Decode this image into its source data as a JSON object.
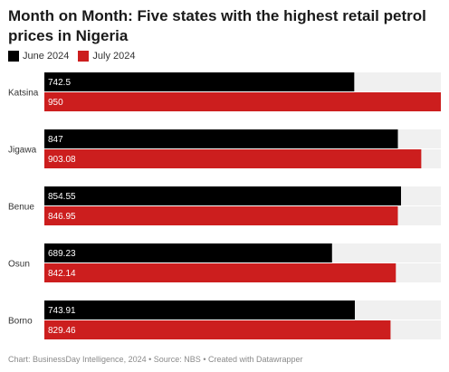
{
  "title": "Month on Month: Five states with the highest retail petrol prices in Nigeria",
  "legend": [
    {
      "name": "June 2024",
      "color": "#000000"
    },
    {
      "name": "July 2024",
      "color": "#cc1e1e"
    }
  ],
  "footer": {
    "chart_source": "Chart: BusinessDay Intelligence, 2024",
    "separator1": "•",
    "source": "Source: NBS",
    "separator2": "•",
    "created": "Created with Datawrapper"
  },
  "chart_data": {
    "type": "bar",
    "orientation": "horizontal",
    "categories": [
      "Katsina",
      "Jigawa",
      "Benue",
      "Osun",
      "Borno"
    ],
    "series": [
      {
        "name": "June 2024",
        "color": "#000000",
        "values": [
          742.5,
          847,
          854.55,
          689.23,
          743.91
        ],
        "labels": [
          "742.5",
          "847",
          "854.55",
          "689.23",
          "743.91"
        ]
      },
      {
        "name": "July 2024",
        "color": "#cc1e1e",
        "values": [
          950,
          903.08,
          846.95,
          842.14,
          829.46
        ],
        "labels": [
          "950",
          "903.08",
          "846.95",
          "842.14",
          "829.46"
        ]
      }
    ],
    "xlim": [
      0,
      950
    ],
    "background_track": true,
    "track_color": "#f0f0f0"
  }
}
